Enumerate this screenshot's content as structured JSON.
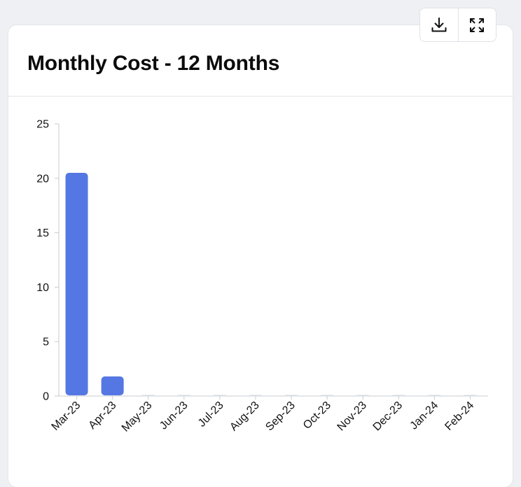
{
  "card": {
    "title": "Monthly Cost - 12 Months"
  },
  "toolbar": {
    "download_icon": "download-icon",
    "expand_icon": "expand-icon"
  },
  "colors": {
    "bar": "#5577e3",
    "zero_marker": "#d6d9de",
    "axis": "#c8cbd0"
  },
  "chart_data": {
    "type": "bar",
    "title": "Monthly Cost - 12 Months",
    "categories": [
      "Mar-23",
      "Apr-23",
      "May-23",
      "Jun-23",
      "Jul-23",
      "Aug-23",
      "Sep-23",
      "Oct-23",
      "Nov-23",
      "Dec-23",
      "Jan-24",
      "Feb-24"
    ],
    "values": [
      20.5,
      1.8,
      0,
      0,
      0,
      0,
      0,
      0,
      0,
      0,
      0,
      0
    ],
    "ylim": [
      0,
      25
    ],
    "yticks": [
      0,
      5,
      10,
      15,
      20,
      25
    ],
    "xlabel": "",
    "ylabel": "",
    "grid": false,
    "legend": "none"
  }
}
